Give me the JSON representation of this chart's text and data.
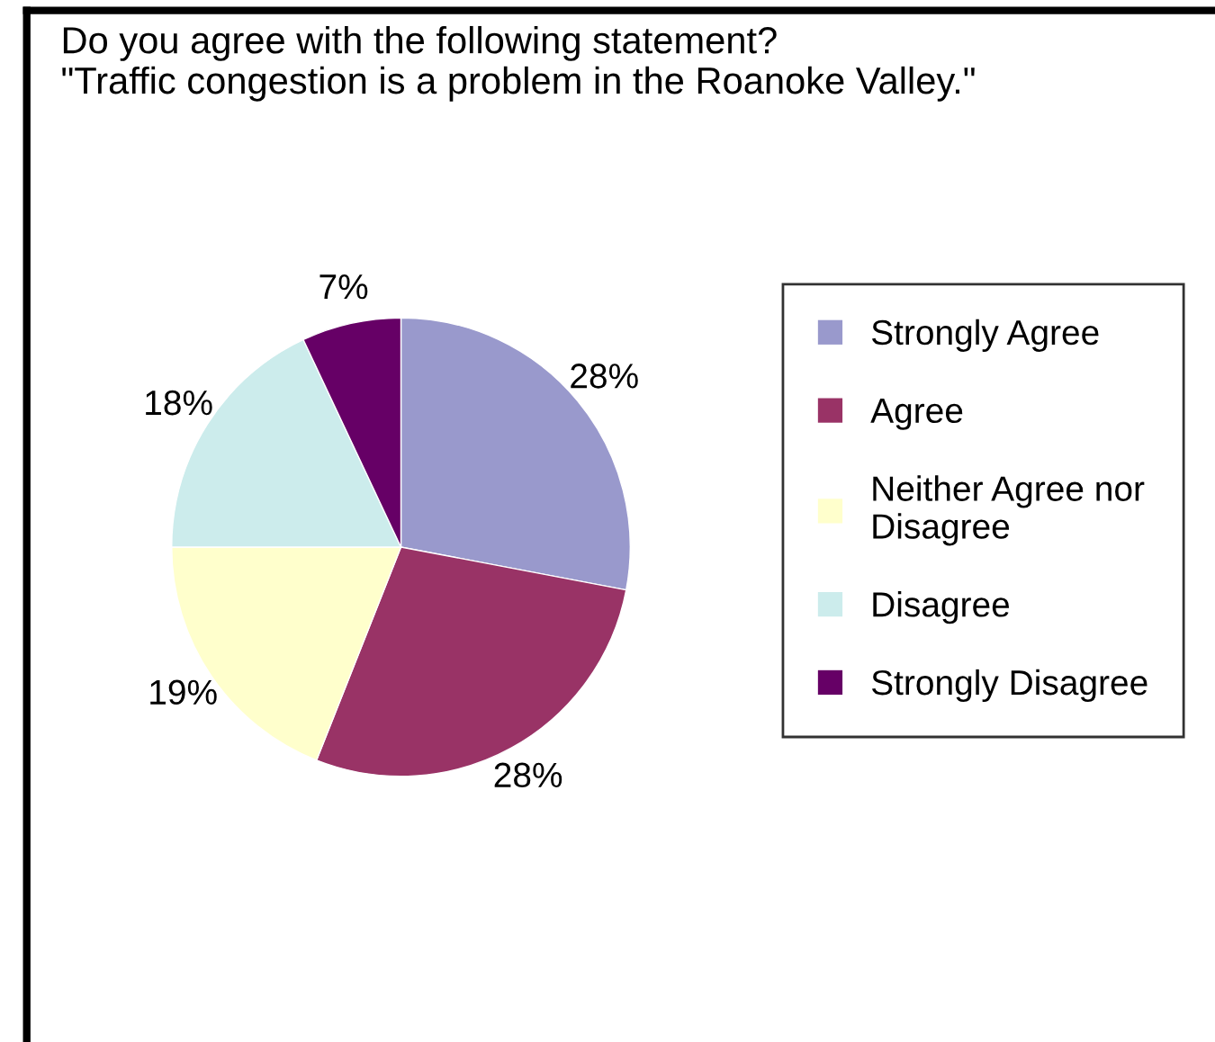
{
  "chart_data": {
    "type": "pie",
    "title": "Do you agree with the following statement?\n\"Traffic congestion is a problem in the Roanoke Valley.\"",
    "categories": [
      "Strongly Agree",
      "Agree",
      "Neither Agree nor\nDisagree",
      "Disagree",
      "Strongly Disagree"
    ],
    "values": [
      28,
      28,
      19,
      18,
      7
    ],
    "value_labels": [
      "28%",
      "28%",
      "19%",
      "18%",
      "7%"
    ],
    "colors": [
      "#9999cc",
      "#993366",
      "#ffffcc",
      "#ccecec",
      "#660066"
    ],
    "legend": "right"
  }
}
